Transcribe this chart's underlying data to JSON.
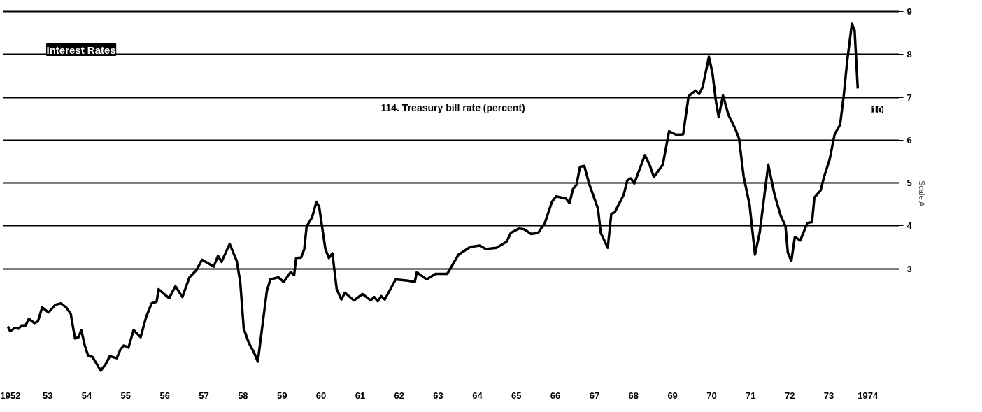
{
  "chart_data": {
    "type": "line",
    "title": "Interest Rates",
    "subtitle": "114. Treasury bill rate (percent)",
    "ylabel": "Scale A",
    "annotations": [
      "10"
    ],
    "x": [
      1951.98,
      1952.04,
      1952.16,
      1952.25,
      1952.34,
      1952.43,
      1952.52,
      1952.66,
      1952.75,
      1952.86,
      1953.02,
      1953.2,
      1953.34,
      1953.47,
      1953.59,
      1953.7,
      1953.79,
      1953.86,
      1953.95,
      1954.04,
      1954.15,
      1954.24,
      1954.36,
      1954.49,
      1954.59,
      1954.77,
      1954.86,
      1954.95,
      1955.07,
      1955.2,
      1955.38,
      1955.52,
      1955.66,
      1955.79,
      1955.84,
      1956.11,
      1956.27,
      1956.45,
      1956.63,
      1956.81,
      1956.95,
      1957.25,
      1957.36,
      1957.45,
      1957.66,
      1957.84,
      1957.93,
      1958.02,
      1958.15,
      1958.29,
      1958.38,
      1958.61,
      1958.7,
      1958.91,
      1959.04,
      1959.22,
      1959.31,
      1959.36,
      1959.49,
      1959.57,
      1959.63,
      1959.77,
      1959.88,
      1959.95,
      1960.11,
      1960.2,
      1960.29,
      1960.4,
      1960.52,
      1960.61,
      1960.84,
      1961.06,
      1961.27,
      1961.36,
      1961.45,
      1961.54,
      1961.63,
      1961.91,
      1962.22,
      1962.4,
      1962.45,
      1962.7,
      1962.93,
      1963.23,
      1963.52,
      1963.82,
      1964.06,
      1964.22,
      1964.49,
      1964.75,
      1964.86,
      1965.07,
      1965.2,
      1965.38,
      1965.56,
      1965.73,
      1965.91,
      1966.02,
      1966.27,
      1966.36,
      1966.45,
      1966.54,
      1966.63,
      1966.74,
      1966.86,
      1967.09,
      1967.16,
      1967.34,
      1967.43,
      1967.52,
      1967.75,
      1967.84,
      1967.93,
      1968.02,
      1968.29,
      1968.41,
      1968.52,
      1968.75,
      1968.91,
      1969.09,
      1969.27,
      1969.41,
      1969.59,
      1969.68,
      1969.77,
      1969.93,
      1970.02,
      1970.11,
      1970.18,
      1970.29,
      1970.43,
      1970.61,
      1970.7,
      1970.82,
      1970.97,
      1971.11,
      1971.23,
      1971.45,
      1971.61,
      1971.77,
      1971.89,
      1971.95,
      1972.04,
      1972.13,
      1972.27,
      1972.45,
      1972.57,
      1972.63,
      1972.79,
      1972.88,
      1973.02,
      1973.15,
      1973.29,
      1973.38,
      1973.47,
      1973.59,
      1973.66,
      1973.74
    ],
    "series": [
      {
        "color": "#000000",
        "values": [
          1.65,
          1.54,
          1.62,
          1.6,
          1.68,
          1.67,
          1.83,
          1.73,
          1.77,
          2.1,
          1.98,
          2.16,
          2.19,
          2.1,
          1.95,
          1.37,
          1.4,
          1.57,
          1.21,
          0.96,
          0.94,
          0.8,
          0.62,
          0.78,
          0.96,
          0.91,
          1.11,
          1.21,
          1.16,
          1.57,
          1.4,
          1.87,
          2.19,
          2.23,
          2.52,
          2.31,
          2.59,
          2.34,
          2.8,
          2.97,
          3.21,
          3.05,
          3.3,
          3.16,
          3.58,
          3.18,
          2.69,
          1.6,
          1.27,
          1.03,
          0.83,
          2.47,
          2.75,
          2.8,
          2.69,
          2.92,
          2.85,
          3.25,
          3.26,
          3.46,
          3.99,
          4.2,
          4.56,
          4.45,
          3.46,
          3.25,
          3.36,
          2.52,
          2.28,
          2.44,
          2.26,
          2.41,
          2.26,
          2.34,
          2.24,
          2.36,
          2.28,
          2.75,
          2.72,
          2.69,
          2.92,
          2.75,
          2.88,
          2.88,
          3.33,
          3.51,
          3.54,
          3.46,
          3.49,
          3.63,
          3.84,
          3.94,
          3.92,
          3.81,
          3.84,
          4.07,
          4.56,
          4.69,
          4.64,
          4.53,
          4.86,
          4.96,
          5.38,
          5.4,
          4.99,
          4.4,
          3.84,
          3.49,
          4.28,
          4.32,
          4.73,
          5.06,
          5.11,
          4.99,
          5.65,
          5.43,
          5.14,
          5.43,
          6.21,
          6.13,
          6.14,
          7.03,
          7.16,
          7.08,
          7.24,
          7.95,
          7.57,
          6.91,
          6.54,
          7.05,
          6.59,
          6.26,
          6.04,
          5.15,
          4.5,
          3.33,
          3.84,
          5.43,
          4.73,
          4.23,
          4.0,
          3.38,
          3.18,
          3.74,
          3.66,
          4.07,
          4.09,
          4.66,
          4.83,
          5.15,
          5.55,
          6.14,
          6.37,
          7.03,
          7.85,
          8.72,
          8.56,
          7.21
        ]
      }
    ],
    "xlim": [
      1951.86,
      1974.8
    ],
    "ylim": [
      0.3,
      9.2
    ],
    "yticks": [
      3,
      4,
      5,
      6,
      7,
      8,
      9
    ],
    "xticks": [
      1952,
      {
        "value": 1953,
        "label": "53"
      },
      {
        "value": 1954,
        "label": "54"
      },
      {
        "value": 1955,
        "label": "55"
      },
      {
        "value": 1956,
        "label": "56"
      },
      {
        "value": 1957,
        "label": "57"
      },
      {
        "value": 1958,
        "label": "58"
      },
      {
        "value": 1959,
        "label": "59"
      },
      {
        "value": 1960,
        "label": "60"
      },
      {
        "value": 1961,
        "label": "61"
      },
      {
        "value": 1962,
        "label": "62"
      },
      {
        "value": 1963,
        "label": "63"
      },
      {
        "value": 1964,
        "label": "64"
      },
      {
        "value": 1965,
        "label": "65"
      },
      {
        "value": 1966,
        "label": "66"
      },
      {
        "value": 1967,
        "label": "67"
      },
      {
        "value": 1968,
        "label": "68"
      },
      {
        "value": 1969,
        "label": "69"
      },
      {
        "value": 1970,
        "label": "70"
      },
      {
        "value": 1971,
        "label": "71"
      },
      {
        "value": 1972,
        "label": "72"
      },
      {
        "value": 1973,
        "label": "73"
      },
      1974
    ],
    "grid": "y",
    "line_style": "solid",
    "marker": "none"
  }
}
